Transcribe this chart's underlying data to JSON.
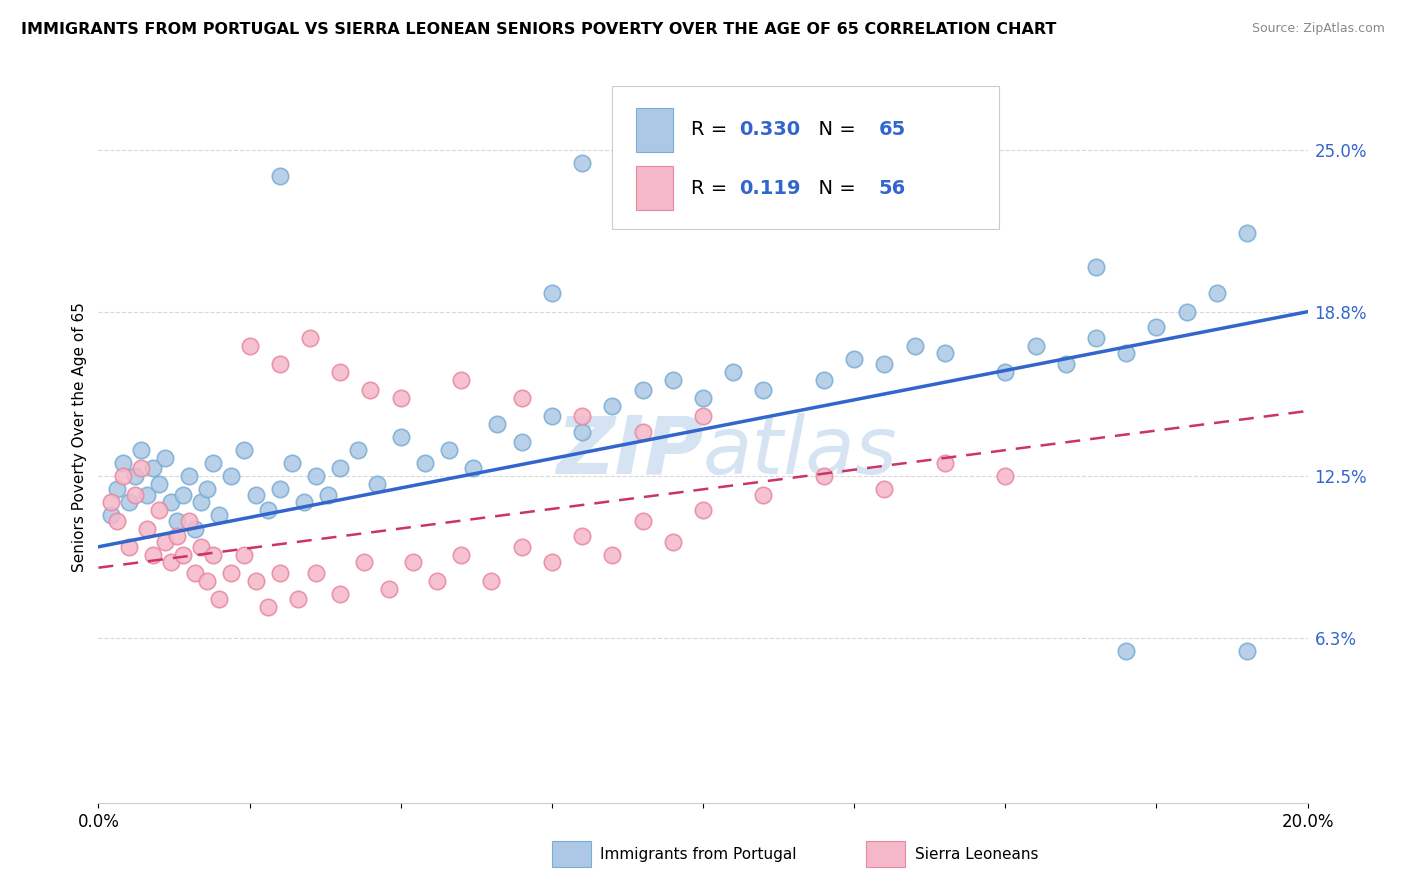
{
  "title": "IMMIGRANTS FROM PORTUGAL VS SIERRA LEONEAN SENIORS POVERTY OVER THE AGE OF 65 CORRELATION CHART",
  "source": "Source: ZipAtlas.com",
  "ylabel": "Seniors Poverty Over the Age of 65",
  "xlim": [
    0.0,
    0.2
  ],
  "ylim": [
    0.0,
    0.28
  ],
  "r_blue": 0.33,
  "n_blue": 65,
  "r_pink": 0.119,
  "n_pink": 56,
  "legend_labels": [
    "Immigrants from Portugal",
    "Sierra Leoneans"
  ],
  "blue_color": "#adc8e6",
  "blue_edge": "#7aadd4",
  "pink_color": "#f5b8c8",
  "pink_edge": "#e888a0",
  "line_blue": "#3366cc",
  "line_pink": "#cc3366",
  "label_color": "#3366cc",
  "watermark_color": "#c5d8ee",
  "grid_color": "#d8d8d8",
  "blue_x": [
    0.002,
    0.003,
    0.004,
    0.005,
    0.006,
    0.007,
    0.008,
    0.009,
    0.01,
    0.011,
    0.012,
    0.013,
    0.014,
    0.015,
    0.016,
    0.017,
    0.018,
    0.019,
    0.02,
    0.022,
    0.024,
    0.026,
    0.028,
    0.03,
    0.032,
    0.034,
    0.036,
    0.038,
    0.04,
    0.043,
    0.046,
    0.05,
    0.054,
    0.058,
    0.062,
    0.066,
    0.07,
    0.075,
    0.08,
    0.085,
    0.09,
    0.095,
    0.1,
    0.105,
    0.11,
    0.12,
    0.125,
    0.13,
    0.135,
    0.14,
    0.15,
    0.155,
    0.16,
    0.165,
    0.17,
    0.175,
    0.18,
    0.185,
    0.19,
    0.08,
    0.165,
    0.03,
    0.075,
    0.17,
    0.19
  ],
  "blue_y": [
    0.11,
    0.12,
    0.13,
    0.115,
    0.125,
    0.135,
    0.118,
    0.128,
    0.122,
    0.132,
    0.115,
    0.108,
    0.118,
    0.125,
    0.105,
    0.115,
    0.12,
    0.13,
    0.11,
    0.125,
    0.135,
    0.118,
    0.112,
    0.12,
    0.13,
    0.115,
    0.125,
    0.118,
    0.128,
    0.135,
    0.122,
    0.14,
    0.13,
    0.135,
    0.128,
    0.145,
    0.138,
    0.148,
    0.142,
    0.152,
    0.158,
    0.162,
    0.155,
    0.165,
    0.158,
    0.162,
    0.17,
    0.168,
    0.175,
    0.172,
    0.165,
    0.175,
    0.168,
    0.178,
    0.172,
    0.182,
    0.188,
    0.195,
    0.218,
    0.245,
    0.205,
    0.24,
    0.195,
    0.058,
    0.058
  ],
  "pink_x": [
    0.002,
    0.003,
    0.004,
    0.005,
    0.006,
    0.007,
    0.008,
    0.009,
    0.01,
    0.011,
    0.012,
    0.013,
    0.014,
    0.015,
    0.016,
    0.017,
    0.018,
    0.019,
    0.02,
    0.022,
    0.024,
    0.026,
    0.028,
    0.03,
    0.033,
    0.036,
    0.04,
    0.044,
    0.048,
    0.052,
    0.056,
    0.06,
    0.065,
    0.07,
    0.075,
    0.08,
    0.085,
    0.09,
    0.095,
    0.1,
    0.11,
    0.12,
    0.13,
    0.14,
    0.15,
    0.025,
    0.03,
    0.035,
    0.04,
    0.045,
    0.05,
    0.06,
    0.07,
    0.08,
    0.09,
    0.1
  ],
  "pink_y": [
    0.115,
    0.108,
    0.125,
    0.098,
    0.118,
    0.128,
    0.105,
    0.095,
    0.112,
    0.1,
    0.092,
    0.102,
    0.095,
    0.108,
    0.088,
    0.098,
    0.085,
    0.095,
    0.078,
    0.088,
    0.095,
    0.085,
    0.075,
    0.088,
    0.078,
    0.088,
    0.08,
    0.092,
    0.082,
    0.092,
    0.085,
    0.095,
    0.085,
    0.098,
    0.092,
    0.102,
    0.095,
    0.108,
    0.1,
    0.112,
    0.118,
    0.125,
    0.12,
    0.13,
    0.125,
    0.175,
    0.168,
    0.178,
    0.165,
    0.158,
    0.155,
    0.162,
    0.155,
    0.148,
    0.142,
    0.148
  ],
  "blue_line_x0": 0.0,
  "blue_line_y0": 0.098,
  "blue_line_x1": 0.2,
  "blue_line_y1": 0.188,
  "pink_line_x0": 0.0,
  "pink_line_y0": 0.09,
  "pink_line_x1": 0.2,
  "pink_line_y1": 0.15
}
